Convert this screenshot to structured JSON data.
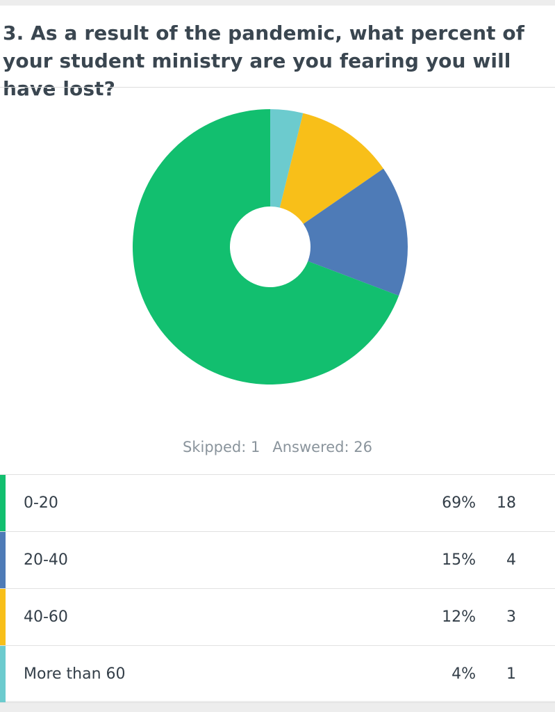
{
  "question": "3. As a result of the pandemic, what percent of your student ministry are you fearing you will have lost?",
  "stats": {
    "skipped": "Skipped: 1",
    "answered": "Answered: 26"
  },
  "chart_data": {
    "type": "pie",
    "donut": true,
    "title": "",
    "start_angle_deg": 0,
    "direction": "clockwise",
    "categories": [
      "More than 60",
      "40-60",
      "20-40",
      "0-20"
    ],
    "values": [
      1,
      3,
      4,
      18
    ],
    "percentages": [
      "4%",
      "12%",
      "15%",
      "69%"
    ],
    "colors": [
      "#6ccbce",
      "#f8bf19",
      "#4e7bb7",
      "#12bf6f"
    ]
  },
  "rows": [
    {
      "label": "0-20",
      "percent": "69%",
      "count": "18",
      "color": "#12bf6f"
    },
    {
      "label": "20-40",
      "percent": "15%",
      "count": "4",
      "color": "#4e7bb7"
    },
    {
      "label": "40-60",
      "percent": "12%",
      "count": "3",
      "color": "#f8bf19"
    },
    {
      "label": "More than 60",
      "percent": "4%",
      "count": "1",
      "color": "#6ccbce"
    }
  ]
}
